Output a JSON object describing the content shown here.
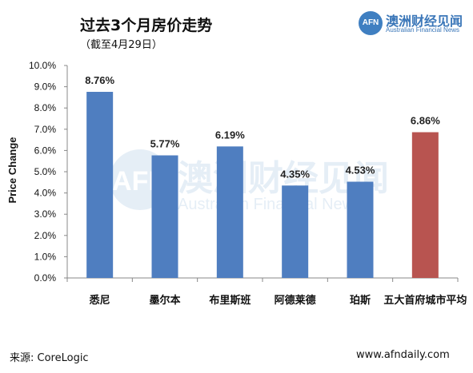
{
  "header": {
    "title": "过去3个月房价走势",
    "subtitle": "（截至4月29日）"
  },
  "logo": {
    "badge": "AFN",
    "name_cn": "澳洲财经见闻",
    "name_en": "Australian Financial News"
  },
  "watermark": {
    "badge": "AFN",
    "name_cn": "澳洲财经见闻",
    "name_en": "Australian Financial News"
  },
  "footer": {
    "source": "来源: CoreLogic",
    "website": "www.afndaily.com"
  },
  "colors": {
    "bar": "#4f7ec0",
    "highlight_bar": "#b85450"
  },
  "chart_data": {
    "type": "bar",
    "title": "过去3个月房价走势",
    "subtitle": "（截至4月29日）",
    "ylabel": "Price Change",
    "xlabel": "",
    "ylim": [
      0,
      10
    ],
    "yticks": [
      0,
      1,
      2,
      3,
      4,
      5,
      6,
      7,
      8,
      9,
      10
    ],
    "ytick_labels": [
      "0.0%",
      "1.0%",
      "2.0%",
      "3.0%",
      "4.0%",
      "5.0%",
      "6.0%",
      "7.0%",
      "8.0%",
      "9.0%",
      "10.0%"
    ],
    "categories": [
      "悉尼",
      "墨尔本",
      "布里斯班",
      "阿德莱德",
      "珀斯",
      "五大首府城市平均"
    ],
    "values": [
      8.76,
      5.77,
      6.19,
      4.35,
      4.53,
      6.86
    ],
    "data_labels": [
      "8.76%",
      "5.77%",
      "6.19%",
      "4.35%",
      "4.53%",
      "6.86%"
    ],
    "highlight_index": 5,
    "grid": false,
    "legend": "none"
  }
}
